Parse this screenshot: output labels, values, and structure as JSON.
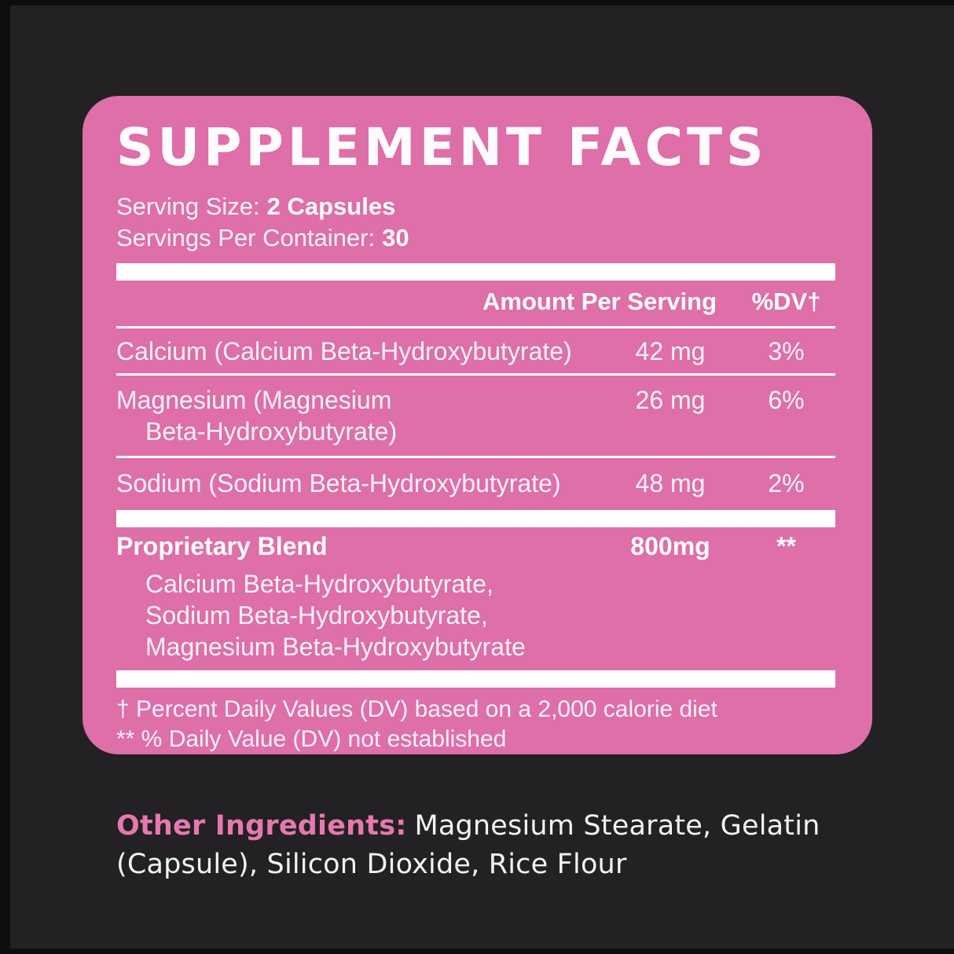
{
  "colors": {
    "panel_pink": "#de6fa8",
    "background_dark": "#232123",
    "edge_dark": "#0e0e0e",
    "bar_white": "#ffffff",
    "accent_text_pink": "#e579af"
  },
  "supplement_panel": {
    "title": "SUPPLEMENT FACTS",
    "serving": {
      "size_label": "Serving Size:",
      "size_value": "2 Capsules",
      "per_container_label": "Servings Per Container:",
      "per_container_value": "30"
    },
    "header": {
      "amount": "Amount Per Serving",
      "dv": "%DV†"
    },
    "rows": [
      {
        "name": "Calcium (Calcium Beta-Hydroxybutyrate)",
        "name_line2": "",
        "amount": "42 mg",
        "dv": "3%"
      },
      {
        "name": "Magnesium (Magnesium",
        "name_line2": "Beta-Hydroxybutyrate)",
        "amount": "26 mg",
        "dv": "6%"
      },
      {
        "name": "Sodium (Sodium Beta-Hydroxybutyrate)",
        "name_line2": "",
        "amount": "48 mg",
        "dv": "2%"
      }
    ],
    "blend": {
      "name": "Proprietary Blend",
      "amount": "800mg",
      "dv": "**",
      "components": [
        "Calcium Beta-Hydroxybutyrate,",
        "Sodium Beta-Hydroxybutyrate,",
        "Magnesium Beta-Hydroxybutyrate"
      ]
    },
    "footnotes": [
      "† Percent Daily Values (DV) based on a 2,000 calorie diet",
      "** % Daily Value (DV) not established"
    ]
  },
  "other_ingredients": {
    "label": "Other Ingredients:",
    "value": "Magnesium Stearate, Gelatin (Capsule), Silicon Dioxide, Rice Flour"
  }
}
